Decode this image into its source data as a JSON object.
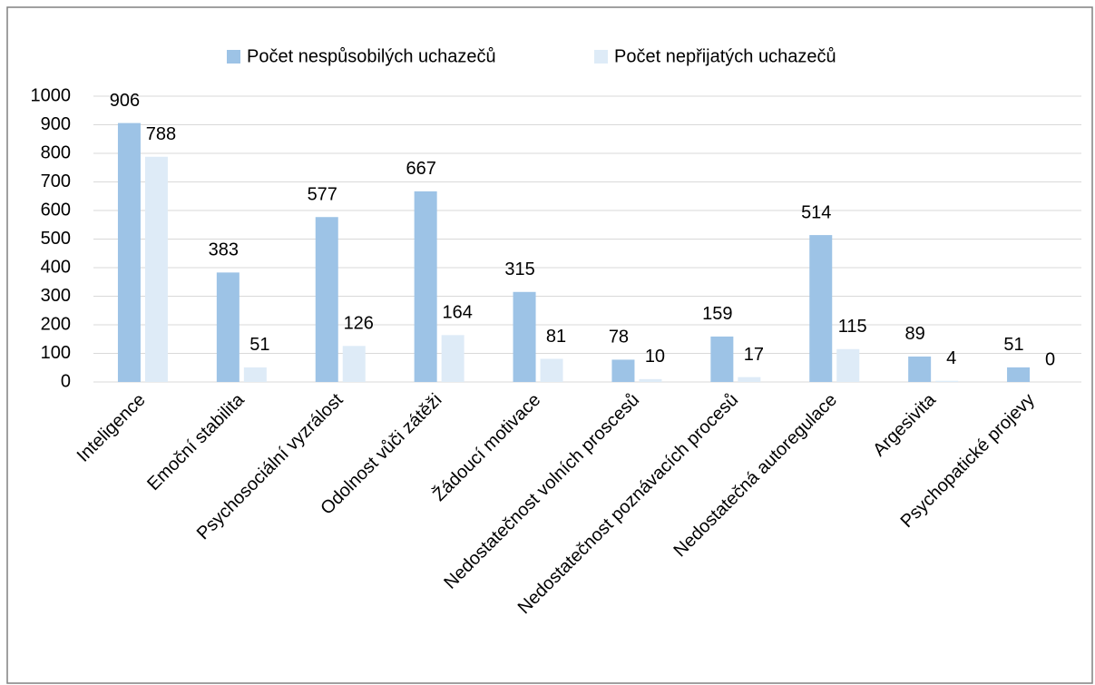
{
  "chart_data": {
    "type": "bar",
    "categories": [
      "Inteligence",
      "Emoční stabilita",
      "Psychosociální vyzrálost",
      "Odolnost vůči zátěži",
      "Žádoucí motivace",
      "Nedostatečnost volních proscesů",
      "Nedostatečnost poznávacích procesů",
      "Nedostatečná autoregulace",
      "Argesivita",
      "Psychopatické projevy"
    ],
    "series": [
      {
        "name": "Počet nespůsobilých uchazečů",
        "color": "#9dc3e6",
        "values": [
          906,
          383,
          577,
          667,
          315,
          78,
          159,
          514,
          89,
          51
        ]
      },
      {
        "name": "Počet nepřijatých uchazečů",
        "color": "#deebf7",
        "values": [
          788,
          51,
          126,
          164,
          81,
          10,
          17,
          115,
          4,
          0
        ]
      }
    ],
    "ylim": [
      0,
      1000
    ],
    "yticks": [
      0,
      100,
      200,
      300,
      400,
      500,
      600,
      700,
      800,
      900,
      1000
    ],
    "grid": true,
    "legend": "top"
  }
}
